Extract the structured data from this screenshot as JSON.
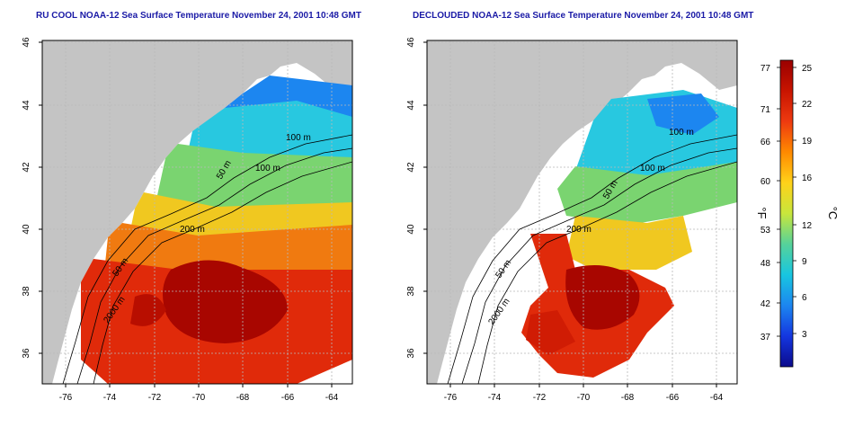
{
  "panels": [
    {
      "title": "RU COOL NOAA-12 Sea Surface Temperature November 24, 2001 10:48 GMT",
      "contour_labels": [
        "50 m",
        "100 m",
        "100 m",
        "200 m",
        "50 m",
        "2000 m"
      ]
    },
    {
      "title": "DECLOUDED NOAA-12 Sea Surface Temperature November 24, 2001 10:48 GMT",
      "contour_labels": [
        "100 m",
        "100 m",
        "50 m",
        "200 m",
        "50 m",
        "2000 m"
      ]
    }
  ],
  "axes": {
    "x_ticks": [
      "-76",
      "-74",
      "-72",
      "-70",
      "-68",
      "-66",
      "-64"
    ],
    "y_ticks": [
      "46",
      "44",
      "42",
      "40",
      "38",
      "36"
    ]
  },
  "colorbar": {
    "fahrenheit_label": "°F",
    "celsius_label": "°C",
    "fahrenheit_ticks": [
      "77",
      "71",
      "66",
      "60",
      "53",
      "48",
      "42",
      "37"
    ],
    "celsius_ticks": [
      "25",
      "22",
      "19",
      "16",
      "12",
      "9",
      "6",
      "3"
    ],
    "gradient": [
      "#9a0000",
      "#c81400",
      "#ee3a10",
      "#ff8a00",
      "#ffd21a",
      "#c8e63c",
      "#56d29a",
      "#18c6e0",
      "#1c86f0",
      "#1436e0",
      "#0b0b8c"
    ]
  },
  "colors": {
    "land": "#c4c4c4",
    "title": "#1a1aa6",
    "grid": "#b8b8b8",
    "contour": "#000000"
  }
}
